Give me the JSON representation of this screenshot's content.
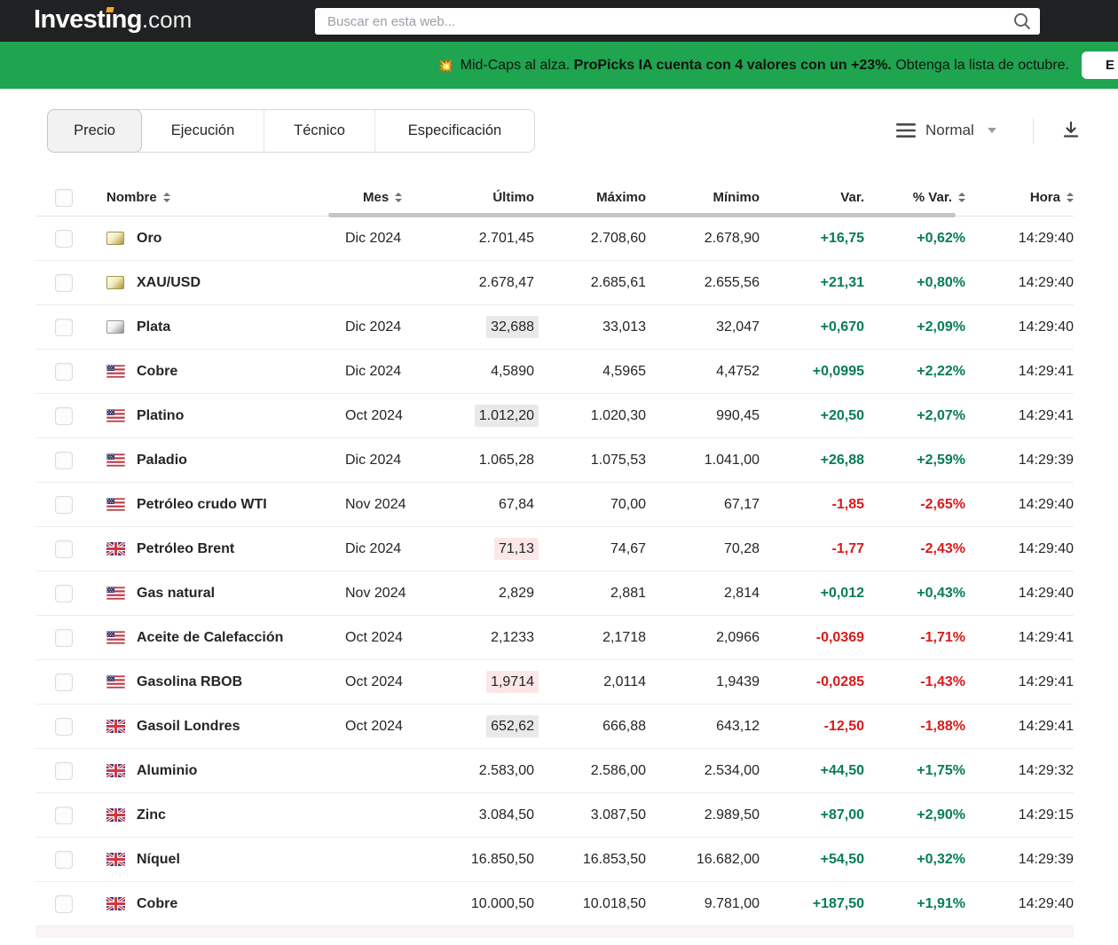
{
  "header": {
    "logo_main": "Investing",
    "logo_suffix": ".com",
    "search_placeholder": "Buscar en esta web...",
    "accent_orange": "#f7a823"
  },
  "banner": {
    "emoji": "💥",
    "segments": [
      {
        "text": "Mid-Caps al alza.",
        "bold": false
      },
      {
        "text": "ProPicks IA cuenta con 4 valores con un +23%.",
        "bold": true
      },
      {
        "text": "Obtenga la lista de octubre.",
        "bold": false
      }
    ],
    "button_label_visible": "E",
    "background": "#1fa44f"
  },
  "toolbar": {
    "tabs": [
      {
        "label": "Precio",
        "active": true
      },
      {
        "label": "Ejecución",
        "active": false
      },
      {
        "label": "Técnico",
        "active": false
      },
      {
        "label": "Especificación",
        "active": false
      }
    ],
    "view_label": "Normal"
  },
  "table": {
    "columns": [
      {
        "label": "Nombre",
        "sortable": true,
        "align": "left"
      },
      {
        "label": "Mes",
        "sortable": true,
        "align": "left"
      },
      {
        "label": "Último",
        "sortable": false,
        "align": "right"
      },
      {
        "label": "Máximo",
        "sortable": false,
        "align": "right"
      },
      {
        "label": "Mínimo",
        "sortable": false,
        "align": "right"
      },
      {
        "label": "Var.",
        "sortable": false,
        "align": "right"
      },
      {
        "label": "% Var.",
        "sortable": true,
        "align": "right"
      },
      {
        "label": "Hora",
        "sortable": true,
        "align": "right"
      }
    ],
    "rows": [
      {
        "flag": "gold",
        "name": "Oro",
        "month": "Dic 2024",
        "last": "2.701,45",
        "high": "2.708,60",
        "low": "2.678,90",
        "change": "+16,75",
        "change_pct": "+0,62%",
        "time": "14:29:40",
        "direction": "up",
        "last_flash": "none"
      },
      {
        "flag": "gold",
        "name": "XAU/USD",
        "month": "",
        "last": "2.678,47",
        "high": "2.685,61",
        "low": "2.655,56",
        "change": "+21,31",
        "change_pct": "+0,80%",
        "time": "14:29:40",
        "direction": "up",
        "last_flash": "none"
      },
      {
        "flag": "silver",
        "name": "Plata",
        "month": "Dic 2024",
        "last": "32,688",
        "high": "33,013",
        "low": "32,047",
        "change": "+0,670",
        "change_pct": "+2,09%",
        "time": "14:29:40",
        "direction": "up",
        "last_flash": "gray"
      },
      {
        "flag": "us",
        "name": "Cobre",
        "month": "Dic 2024",
        "last": "4,5890",
        "high": "4,5965",
        "low": "4,4752",
        "change": "+0,0995",
        "change_pct": "+2,22%",
        "time": "14:29:41",
        "direction": "up",
        "last_flash": "none"
      },
      {
        "flag": "us",
        "name": "Platino",
        "month": "Oct 2024",
        "last": "1.012,20",
        "high": "1.020,30",
        "low": "990,45",
        "change": "+20,50",
        "change_pct": "+2,07%",
        "time": "14:29:41",
        "direction": "up",
        "last_flash": "gray"
      },
      {
        "flag": "us",
        "name": "Paladio",
        "month": "Dic 2024",
        "last": "1.065,28",
        "high": "1.075,53",
        "low": "1.041,00",
        "change": "+26,88",
        "change_pct": "+2,59%",
        "time": "14:29:39",
        "direction": "up",
        "last_flash": "none"
      },
      {
        "flag": "us",
        "name": "Petróleo crudo WTI",
        "month": "Nov 2024",
        "last": "67,84",
        "high": "70,00",
        "low": "67,17",
        "change": "-1,85",
        "change_pct": "-2,65%",
        "time": "14:29:40",
        "direction": "down",
        "last_flash": "none"
      },
      {
        "flag": "uk",
        "name": "Petróleo Brent",
        "month": "Dic 2024",
        "last": "71,13",
        "high": "74,67",
        "low": "70,28",
        "change": "-1,77",
        "change_pct": "-2,43%",
        "time": "14:29:40",
        "direction": "down",
        "last_flash": "pink"
      },
      {
        "flag": "us",
        "name": "Gas natural",
        "month": "Nov 2024",
        "last": "2,829",
        "high": "2,881",
        "low": "2,814",
        "change": "+0,012",
        "change_pct": "+0,43%",
        "time": "14:29:40",
        "direction": "up",
        "last_flash": "none"
      },
      {
        "flag": "us",
        "name": "Aceite de Calefacción",
        "month": "Oct 2024",
        "last": "2,1233",
        "high": "2,1718",
        "low": "2,0966",
        "change": "-0,0369",
        "change_pct": "-1,71%",
        "time": "14:29:41",
        "direction": "down",
        "last_flash": "none"
      },
      {
        "flag": "us",
        "name": "Gasolina RBOB",
        "month": "Oct 2024",
        "last": "1,9714",
        "high": "2,0114",
        "low": "1,9439",
        "change": "-0,0285",
        "change_pct": "-1,43%",
        "time": "14:29:41",
        "direction": "down",
        "last_flash": "pink"
      },
      {
        "flag": "uk",
        "name": "Gasoil Londres",
        "month": "Oct 2024",
        "last": "652,62",
        "high": "666,88",
        "low": "643,12",
        "change": "-12,50",
        "change_pct": "-1,88%",
        "time": "14:29:41",
        "direction": "down",
        "last_flash": "gray"
      },
      {
        "flag": "uk",
        "name": "Aluminio",
        "month": "",
        "last": "2.583,00",
        "high": "2.586,00",
        "low": "2.534,00",
        "change": "+44,50",
        "change_pct": "+1,75%",
        "time": "14:29:32",
        "direction": "up",
        "last_flash": "none"
      },
      {
        "flag": "uk",
        "name": "Zinc",
        "month": "",
        "last": "3.084,50",
        "high": "3.087,50",
        "low": "2.989,50",
        "change": "+87,00",
        "change_pct": "+2,90%",
        "time": "14:29:15",
        "direction": "up",
        "last_flash": "none"
      },
      {
        "flag": "uk",
        "name": "Níquel",
        "month": "",
        "last": "16.850,50",
        "high": "16.853,50",
        "low": "16.682,00",
        "change": "+54,50",
        "change_pct": "+0,32%",
        "time": "14:29:39",
        "direction": "up",
        "last_flash": "none"
      },
      {
        "flag": "uk",
        "name": "Cobre",
        "month": "",
        "last": "10.000,50",
        "high": "10.018,50",
        "low": "9.781,00",
        "change": "+187,50",
        "change_pct": "+1,91%",
        "time": "14:29:40",
        "direction": "up",
        "last_flash": "none"
      }
    ]
  },
  "colors": {
    "positive": "#077d55",
    "negative": "#d91a1a",
    "banner_green": "#1fa44f",
    "topbar_black": "#1f2122"
  }
}
